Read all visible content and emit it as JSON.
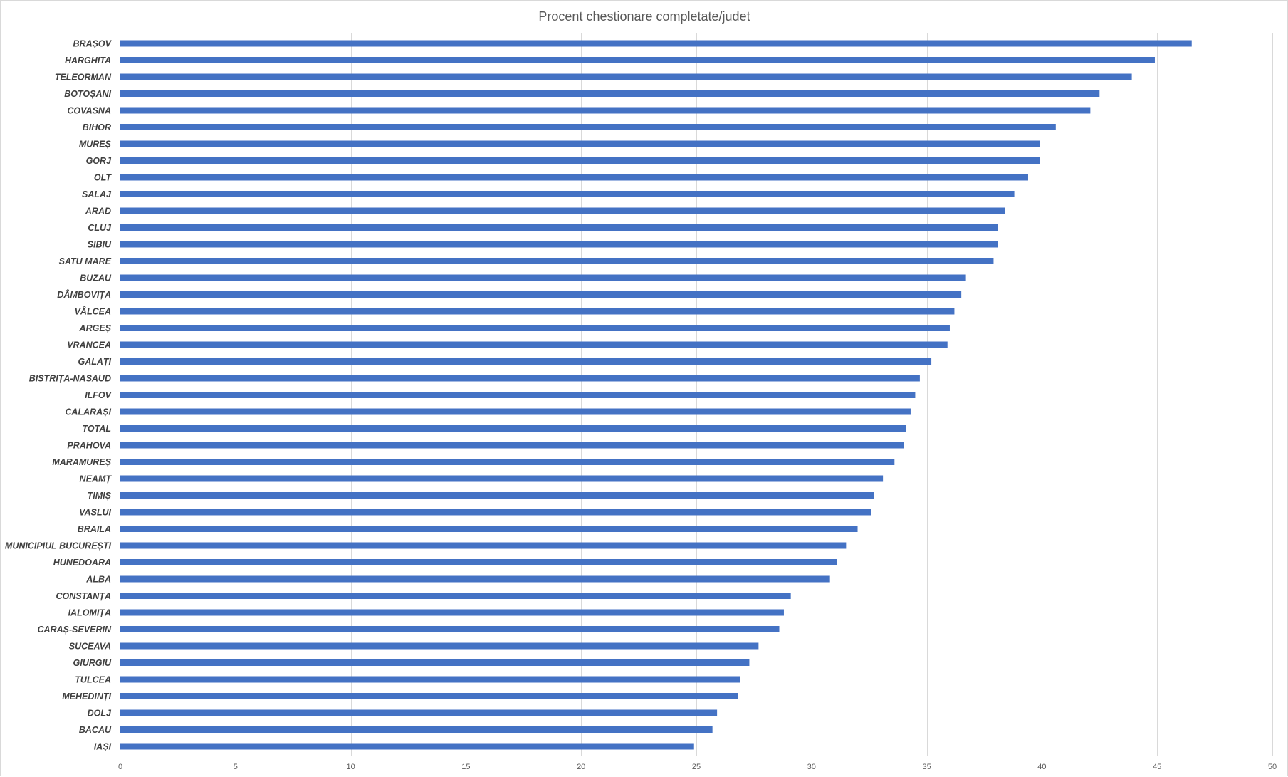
{
  "chart_data": {
    "type": "bar",
    "orientation": "horizontal",
    "title": "Procent chestionare completate/judet",
    "xlabel": "",
    "ylabel": "",
    "xlim": [
      0,
      50
    ],
    "x_ticks": [
      0,
      5,
      10,
      15,
      20,
      25,
      30,
      35,
      40,
      45,
      50
    ],
    "grid": true,
    "legend": "none",
    "bar_color": "#4472c4",
    "categories": [
      "BRAȘOV",
      "HARGHITA",
      "TELEORMAN",
      "BOTOȘANI",
      "COVASNA",
      "BIHOR",
      "MUREȘ",
      "GORJ",
      "OLT",
      "SALAJ",
      "ARAD",
      "CLUJ",
      "SIBIU",
      "SATU MARE",
      "BUZAU",
      "DÂMBOVIȚA",
      "VÂLCEA",
      "ARGEȘ",
      "VRANCEA",
      "GALAȚI",
      "BISTRIȚA-NASAUD",
      "ILFOV",
      "CALARAȘI",
      "TOTAL",
      "PRAHOVA",
      "MARAMUREȘ",
      "NEAMȚ",
      "TIMIȘ",
      "VASLUI",
      "BRAILA",
      "MUNICIPIUL BUCUREȘTI",
      "HUNEDOARA",
      "ALBA",
      "CONSTANȚA",
      "IALOMIȚA",
      "CARAȘ-SEVERIN",
      "SUCEAVA",
      "GIURGIU",
      "TULCEA",
      "MEHEDINȚI",
      "DOLJ",
      "BACAU",
      "IAȘI"
    ],
    "values": [
      46.5,
      44.9,
      43.9,
      42.5,
      42.1,
      40.6,
      39.9,
      39.9,
      39.4,
      38.8,
      38.4,
      38.1,
      38.1,
      37.9,
      36.7,
      36.5,
      36.2,
      36.0,
      35.9,
      35.2,
      34.7,
      34.5,
      34.3,
      34.1,
      34.0,
      33.6,
      33.1,
      32.7,
      32.6,
      32.0,
      31.5,
      31.1,
      30.8,
      29.1,
      28.8,
      28.6,
      27.7,
      27.3,
      26.9,
      26.8,
      25.9,
      25.7,
      24.9
    ]
  }
}
